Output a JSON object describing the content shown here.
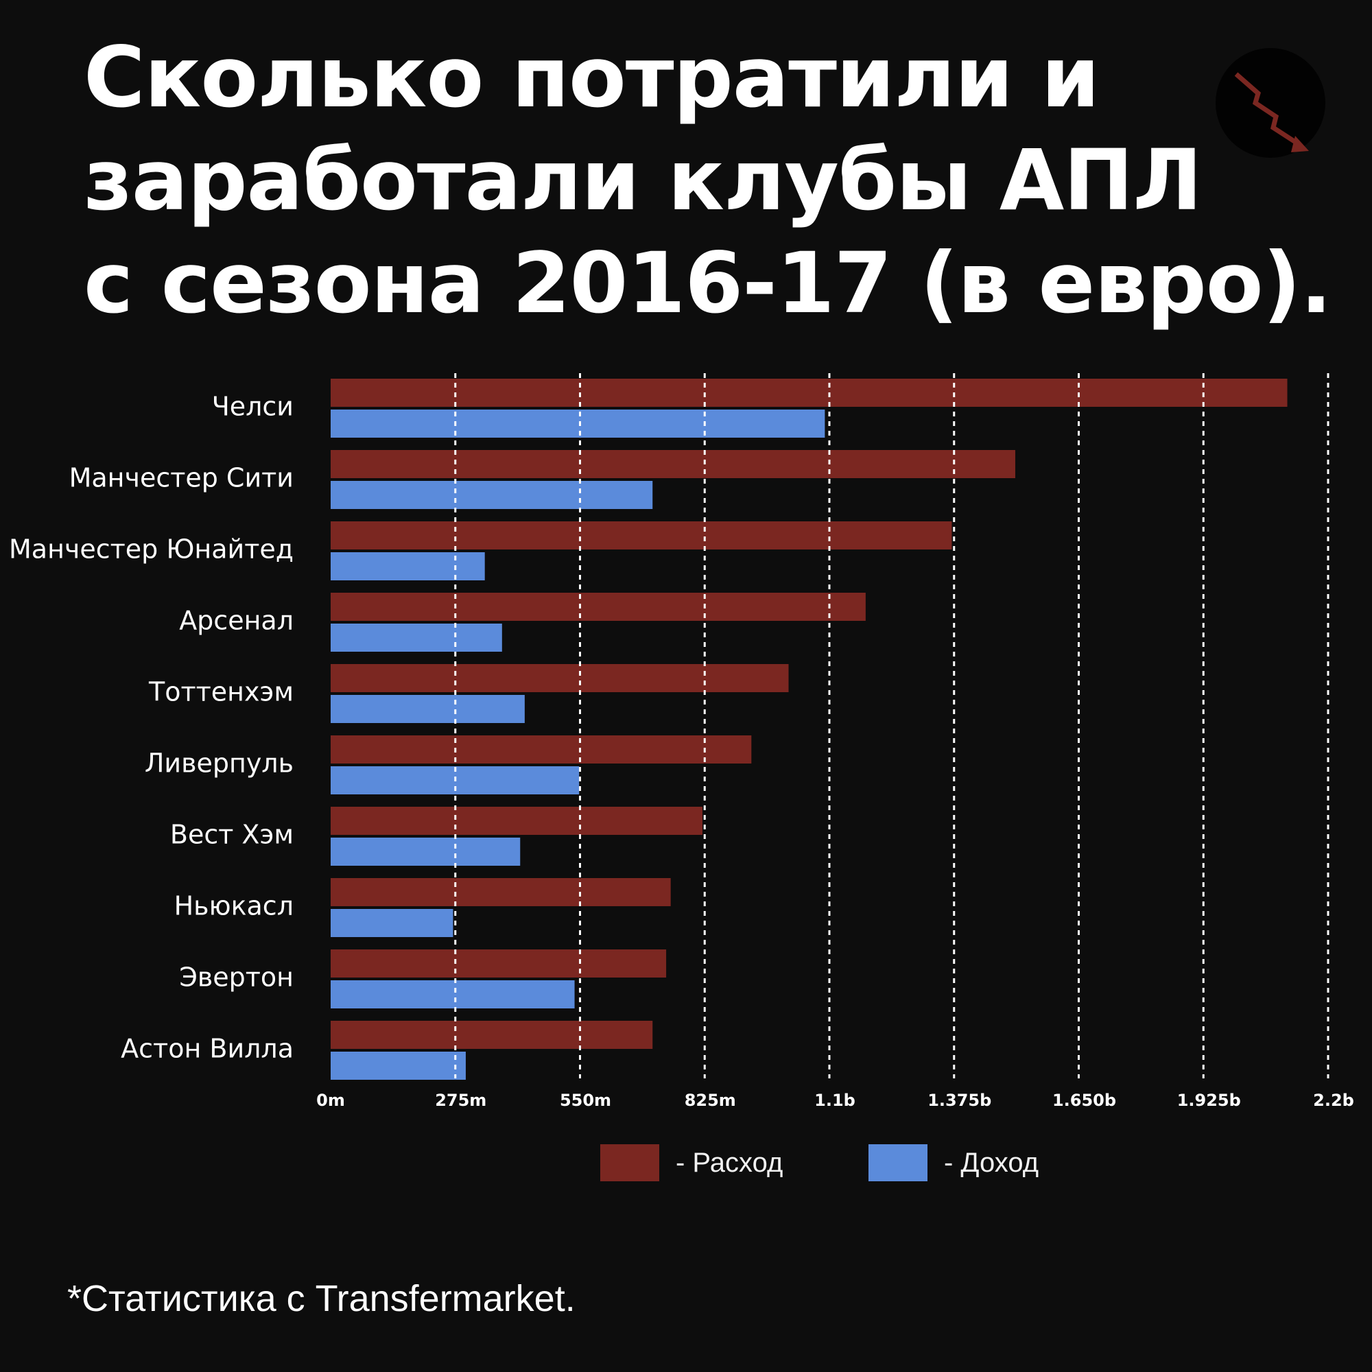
{
  "title_lines": [
    "Сколько потратили и",
    "заработали клубы АПЛ",
    "с сезона 2016-17 (в евро)."
  ],
  "icon": "trending-down-arrow-icon",
  "colors": {
    "background": "#0d0d0d",
    "expense": "#7b2721",
    "income": "#5b8bdb",
    "grid": "#ffffff"
  },
  "legend": {
    "expense_label": "- Расход",
    "income_label": "- Доход"
  },
  "source": "*Статистика с Transfermarket.",
  "chart_data": {
    "type": "bar",
    "orientation": "horizontal",
    "categories": [
      "Челси",
      "Манчестер Сити",
      "Манчестер Юнайтед",
      "Арсенал",
      "Тоттенхэм",
      "Ливерпуль",
      "Вест Хэм",
      "Ньюкасл",
      "Эвертон",
      "Астон Вилла"
    ],
    "series": [
      {
        "name": "Расход",
        "key": "expense",
        "values": [
          2110,
          1510,
          1370,
          1180,
          1010,
          928,
          820,
          750,
          740,
          710
        ]
      },
      {
        "name": "Доход",
        "key": "income",
        "values": [
          1090,
          710,
          340,
          378,
          428,
          548,
          418,
          270,
          538,
          298
        ]
      }
    ],
    "xlim": [
      0,
      2200
    ],
    "xticks": [
      0,
      275,
      550,
      825,
      1100,
      1375,
      1650,
      1925,
      2200
    ],
    "xtick_labels": [
      "0m",
      "275m",
      "550m",
      "825m",
      "1.1b",
      "1.375b",
      "1.650b",
      "1.925b",
      "2.2b"
    ],
    "grid": "vertical dashed",
    "legend_position": "bottom-center"
  }
}
